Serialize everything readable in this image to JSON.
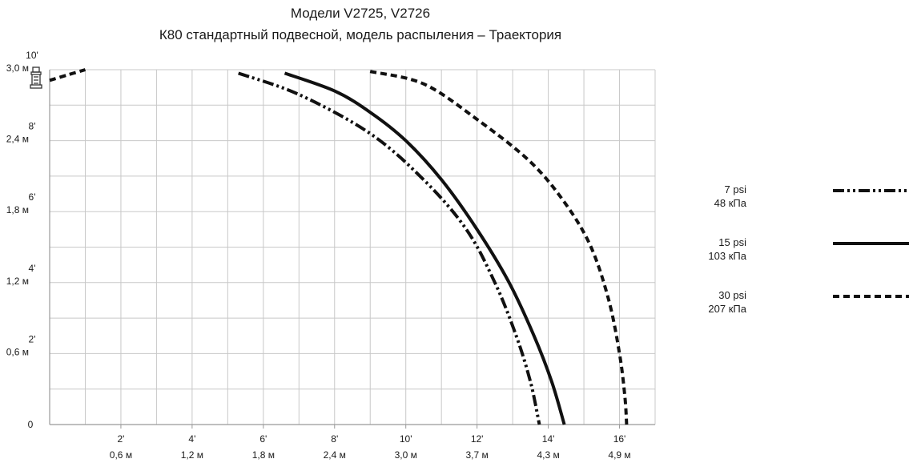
{
  "chart_data": {
    "type": "line",
    "title": "Модели V2725, V2726",
    "subtitle": "К80 стандартный подвесной, модель распыления – Траектория",
    "xlabel": "",
    "ylabel": "",
    "xlim": [
      0,
      17
    ],
    "ylim": [
      0,
      10
    ],
    "grid": true,
    "legend_position": "right",
    "x_ticks": [
      {
        "value": 2,
        "ft": "2'",
        "m": "0,6 м"
      },
      {
        "value": 4,
        "ft": "4'",
        "m": "1,2 м"
      },
      {
        "value": 6,
        "ft": "6'",
        "m": "1,8 м"
      },
      {
        "value": 8,
        "ft": "8'",
        "m": "2,4 м"
      },
      {
        "value": 10,
        "ft": "10'",
        "m": "3,0 м"
      },
      {
        "value": 12,
        "ft": "12'",
        "m": "3,7 м"
      },
      {
        "value": 14,
        "ft": "14'",
        "m": "4,3 м"
      },
      {
        "value": 16,
        "ft": "16'",
        "m": "4,9 м"
      }
    ],
    "y_ticks": [
      {
        "value": 0,
        "ft": "0",
        "m": ""
      },
      {
        "value": 2,
        "ft": "2'",
        "m": "0,6 м"
      },
      {
        "value": 4,
        "ft": "4'",
        "m": "1,2 м"
      },
      {
        "value": 6,
        "ft": "6'",
        "m": "1,8 м"
      },
      {
        "value": 8,
        "ft": "8'",
        "m": "2,4 м"
      },
      {
        "value": 10,
        "ft": "10'",
        "m": "3,0 м"
      }
    ],
    "series": [
      {
        "name": "7 psi",
        "name2": "48 кПа",
        "style": "dash-dot-dot",
        "points": [
          [
            5.3,
            9.9
          ],
          [
            7.0,
            9.3
          ],
          [
            9.0,
            8.2
          ],
          [
            10.5,
            6.9
          ],
          [
            11.7,
            5.5
          ],
          [
            12.5,
            4.0
          ],
          [
            13.1,
            2.5
          ],
          [
            13.5,
            1.2
          ],
          [
            13.75,
            0.0
          ]
        ]
      },
      {
        "name": "15 psi",
        "name2": "103 кПа",
        "style": "solid",
        "points": [
          [
            6.6,
            9.9
          ],
          [
            8.0,
            9.4
          ],
          [
            9.0,
            8.8
          ],
          [
            10.0,
            8.0
          ],
          [
            11.0,
            6.9
          ],
          [
            12.0,
            5.5
          ],
          [
            12.9,
            4.0
          ],
          [
            13.6,
            2.5
          ],
          [
            14.1,
            1.2
          ],
          [
            14.45,
            0.0
          ]
        ]
      },
      {
        "name": "30 psi",
        "name2": "207 кПа",
        "style": "dashed",
        "points": [
          [
            9.0,
            9.95
          ],
          [
            10.5,
            9.6
          ],
          [
            12.0,
            8.6
          ],
          [
            13.5,
            7.4
          ],
          [
            14.5,
            6.2
          ],
          [
            15.2,
            5.0
          ],
          [
            15.7,
            3.5
          ],
          [
            16.0,
            2.0
          ],
          [
            16.15,
            0.8
          ],
          [
            16.2,
            0.0
          ]
        ]
      },
      {
        "name": "",
        "style": "dashed",
        "points": [
          [
            0.0,
            9.7
          ],
          [
            0.5,
            9.85
          ],
          [
            1.0,
            10.0
          ]
        ]
      }
    ]
  },
  "colors": {
    "line": "#111111",
    "grid": "#c8c8c8",
    "axis": "#999999",
    "text": "#1a1a1a"
  },
  "icons": {
    "sprinkler": "sprinkler-head-icon"
  }
}
